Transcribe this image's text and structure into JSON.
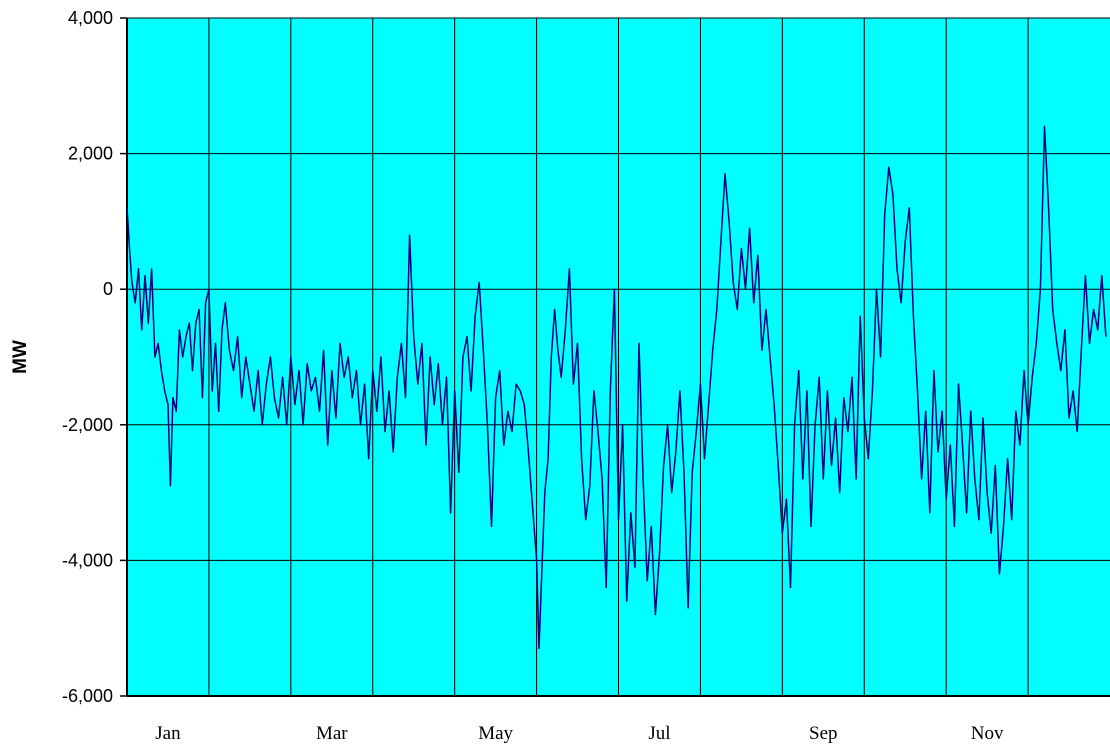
{
  "chart_data": {
    "type": "line",
    "title": "",
    "xlabel": "",
    "ylabel": "MW",
    "ylim": [
      -6000,
      4000
    ],
    "yticks": [
      4000,
      2000,
      0,
      -2000,
      -4000,
      -6000
    ],
    "ytick_labels": [
      "4,000",
      "2,000",
      "0",
      "-2,000",
      "-4,000",
      "-6,000"
    ],
    "x_unit": "month index (0 = start of Jan, 12 = end of Dec)",
    "xlim": [
      0,
      12
    ],
    "x_tick_labels": [
      {
        "label": "Jan",
        "x": 0.5
      },
      {
        "label": "Mar",
        "x": 2.5
      },
      {
        "label": "May",
        "x": 4.5
      },
      {
        "label": "Jul",
        "x": 6.5
      },
      {
        "label": "Sep",
        "x": 8.5
      },
      {
        "label": "Nov",
        "x": 10.5
      }
    ],
    "grid": "on",
    "colors": {
      "plot_bg": "#00FFFF",
      "line": "#000080",
      "grid": "#000000"
    },
    "series": [
      {
        "points": [
          [
            0.0,
            1200
          ],
          [
            0.03,
            600
          ],
          [
            0.06,
            100
          ],
          [
            0.1,
            -200
          ],
          [
            0.14,
            300
          ],
          [
            0.18,
            -600
          ],
          [
            0.22,
            200
          ],
          [
            0.26,
            -500
          ],
          [
            0.3,
            300
          ],
          [
            0.34,
            -1000
          ],
          [
            0.38,
            -800
          ],
          [
            0.42,
            -1200
          ],
          [
            0.46,
            -1500
          ],
          [
            0.5,
            -1700
          ],
          [
            0.53,
            -2900
          ],
          [
            0.56,
            -1600
          ],
          [
            0.6,
            -1800
          ],
          [
            0.64,
            -600
          ],
          [
            0.68,
            -1000
          ],
          [
            0.72,
            -700
          ],
          [
            0.76,
            -500
          ],
          [
            0.8,
            -1200
          ],
          [
            0.84,
            -500
          ],
          [
            0.88,
            -300
          ],
          [
            0.92,
            -1600
          ],
          [
            0.96,
            -200
          ],
          [
            1.0,
            0
          ],
          [
            1.04,
            -1500
          ],
          [
            1.08,
            -800
          ],
          [
            1.12,
            -1800
          ],
          [
            1.16,
            -600
          ],
          [
            1.2,
            -200
          ],
          [
            1.25,
            -900
          ],
          [
            1.3,
            -1200
          ],
          [
            1.35,
            -700
          ],
          [
            1.4,
            -1600
          ],
          [
            1.45,
            -1000
          ],
          [
            1.5,
            -1400
          ],
          [
            1.55,
            -1800
          ],
          [
            1.6,
            -1200
          ],
          [
            1.65,
            -2000
          ],
          [
            1.7,
            -1400
          ],
          [
            1.75,
            -1000
          ],
          [
            1.8,
            -1600
          ],
          [
            1.85,
            -1900
          ],
          [
            1.9,
            -1300
          ],
          [
            1.95,
            -2000
          ],
          [
            2.0,
            -1000
          ],
          [
            2.05,
            -1700
          ],
          [
            2.1,
            -1200
          ],
          [
            2.15,
            -2000
          ],
          [
            2.2,
            -1100
          ],
          [
            2.25,
            -1500
          ],
          [
            2.3,
            -1300
          ],
          [
            2.35,
            -1800
          ],
          [
            2.4,
            -900
          ],
          [
            2.45,
            -2300
          ],
          [
            2.5,
            -1200
          ],
          [
            2.55,
            -1900
          ],
          [
            2.6,
            -800
          ],
          [
            2.65,
            -1300
          ],
          [
            2.7,
            -1000
          ],
          [
            2.75,
            -1600
          ],
          [
            2.8,
            -1200
          ],
          [
            2.85,
            -2000
          ],
          [
            2.9,
            -1400
          ],
          [
            2.95,
            -2500
          ],
          [
            3.0,
            -1200
          ],
          [
            3.05,
            -1800
          ],
          [
            3.1,
            -1000
          ],
          [
            3.15,
            -2100
          ],
          [
            3.2,
            -1500
          ],
          [
            3.25,
            -2400
          ],
          [
            3.3,
            -1300
          ],
          [
            3.35,
            -800
          ],
          [
            3.4,
            -1600
          ],
          [
            3.45,
            800
          ],
          [
            3.5,
            -700
          ],
          [
            3.55,
            -1400
          ],
          [
            3.6,
            -800
          ],
          [
            3.65,
            -2300
          ],
          [
            3.7,
            -1000
          ],
          [
            3.75,
            -1700
          ],
          [
            3.8,
            -1100
          ],
          [
            3.85,
            -2000
          ],
          [
            3.9,
            -1300
          ],
          [
            3.95,
            -3300
          ],
          [
            4.0,
            -1500
          ],
          [
            4.05,
            -2700
          ],
          [
            4.1,
            -1000
          ],
          [
            4.15,
            -700
          ],
          [
            4.2,
            -1500
          ],
          [
            4.25,
            -400
          ],
          [
            4.3,
            100
          ],
          [
            4.35,
            -900
          ],
          [
            4.4,
            -2000
          ],
          [
            4.45,
            -3500
          ],
          [
            4.5,
            -1600
          ],
          [
            4.55,
            -1200
          ],
          [
            4.6,
            -2300
          ],
          [
            4.65,
            -1800
          ],
          [
            4.7,
            -2100
          ],
          [
            4.75,
            -1400
          ],
          [
            4.8,
            -1500
          ],
          [
            4.85,
            -1700
          ],
          [
            4.9,
            -2400
          ],
          [
            4.95,
            -3200
          ],
          [
            5.0,
            -4000
          ],
          [
            5.03,
            -5300
          ],
          [
            5.06,
            -4300
          ],
          [
            5.1,
            -3000
          ],
          [
            5.14,
            -2500
          ],
          [
            5.18,
            -1000
          ],
          [
            5.22,
            -300
          ],
          [
            5.26,
            -900
          ],
          [
            5.3,
            -1300
          ],
          [
            5.35,
            -600
          ],
          [
            5.4,
            300
          ],
          [
            5.45,
            -1400
          ],
          [
            5.5,
            -800
          ],
          [
            5.55,
            -2500
          ],
          [
            5.6,
            -3400
          ],
          [
            5.65,
            -2900
          ],
          [
            5.7,
            -1500
          ],
          [
            5.75,
            -2100
          ],
          [
            5.8,
            -2800
          ],
          [
            5.85,
            -4400
          ],
          [
            5.9,
            -1500
          ],
          [
            5.95,
            0
          ],
          [
            6.0,
            -3400
          ],
          [
            6.05,
            -2000
          ],
          [
            6.1,
            -4600
          ],
          [
            6.15,
            -3300
          ],
          [
            6.2,
            -4100
          ],
          [
            6.25,
            -800
          ],
          [
            6.3,
            -2800
          ],
          [
            6.35,
            -4300
          ],
          [
            6.4,
            -3500
          ],
          [
            6.45,
            -4800
          ],
          [
            6.5,
            -3900
          ],
          [
            6.55,
            -2600
          ],
          [
            6.6,
            -2000
          ],
          [
            6.65,
            -3000
          ],
          [
            6.7,
            -2400
          ],
          [
            6.75,
            -1500
          ],
          [
            6.8,
            -2700
          ],
          [
            6.85,
            -4700
          ],
          [
            6.9,
            -2700
          ],
          [
            6.95,
            -2100
          ],
          [
            7.0,
            -1400
          ],
          [
            7.05,
            -2500
          ],
          [
            7.1,
            -1700
          ],
          [
            7.15,
            -900
          ],
          [
            7.2,
            -300
          ],
          [
            7.25,
            700
          ],
          [
            7.3,
            1700
          ],
          [
            7.35,
            1000
          ],
          [
            7.4,
            100
          ],
          [
            7.45,
            -300
          ],
          [
            7.5,
            600
          ],
          [
            7.55,
            0
          ],
          [
            7.6,
            900
          ],
          [
            7.65,
            -200
          ],
          [
            7.7,
            500
          ],
          [
            7.75,
            -900
          ],
          [
            7.8,
            -300
          ],
          [
            7.85,
            -1000
          ],
          [
            7.9,
            -1700
          ],
          [
            7.95,
            -2600
          ],
          [
            8.0,
            -3600
          ],
          [
            8.05,
            -3100
          ],
          [
            8.1,
            -4400
          ],
          [
            8.15,
            -2000
          ],
          [
            8.2,
            -1200
          ],
          [
            8.25,
            -2800
          ],
          [
            8.3,
            -1500
          ],
          [
            8.35,
            -3500
          ],
          [
            8.4,
            -2000
          ],
          [
            8.45,
            -1300
          ],
          [
            8.5,
            -2800
          ],
          [
            8.55,
            -1500
          ],
          [
            8.6,
            -2600
          ],
          [
            8.65,
            -1900
          ],
          [
            8.7,
            -3000
          ],
          [
            8.75,
            -1600
          ],
          [
            8.8,
            -2100
          ],
          [
            8.85,
            -1300
          ],
          [
            8.9,
            -2800
          ],
          [
            8.95,
            -400
          ],
          [
            9.0,
            -1900
          ],
          [
            9.05,
            -2500
          ],
          [
            9.1,
            -1500
          ],
          [
            9.15,
            0
          ],
          [
            9.2,
            -1000
          ],
          [
            9.25,
            1100
          ],
          [
            9.3,
            1800
          ],
          [
            9.35,
            1400
          ],
          [
            9.4,
            300
          ],
          [
            9.45,
            -200
          ],
          [
            9.5,
            700
          ],
          [
            9.55,
            1200
          ],
          [
            9.6,
            -400
          ],
          [
            9.65,
            -1500
          ],
          [
            9.7,
            -2800
          ],
          [
            9.75,
            -1800
          ],
          [
            9.8,
            -3300
          ],
          [
            9.85,
            -1200
          ],
          [
            9.9,
            -2400
          ],
          [
            9.95,
            -1800
          ],
          [
            10.0,
            -3100
          ],
          [
            10.05,
            -2300
          ],
          [
            10.1,
            -3500
          ],
          [
            10.15,
            -1400
          ],
          [
            10.2,
            -2300
          ],
          [
            10.25,
            -3300
          ],
          [
            10.3,
            -1800
          ],
          [
            10.35,
            -2800
          ],
          [
            10.4,
            -3400
          ],
          [
            10.45,
            -1900
          ],
          [
            10.5,
            -3000
          ],
          [
            10.55,
            -3600
          ],
          [
            10.6,
            -2600
          ],
          [
            10.65,
            -4200
          ],
          [
            10.7,
            -3500
          ],
          [
            10.75,
            -2500
          ],
          [
            10.8,
            -3400
          ],
          [
            10.85,
            -1800
          ],
          [
            10.9,
            -2300
          ],
          [
            10.95,
            -1200
          ],
          [
            11.0,
            -2000
          ],
          [
            11.05,
            -1300
          ],
          [
            11.1,
            -800
          ],
          [
            11.15,
            0
          ],
          [
            11.2,
            2400
          ],
          [
            11.25,
            1200
          ],
          [
            11.3,
            -300
          ],
          [
            11.35,
            -800
          ],
          [
            11.4,
            -1200
          ],
          [
            11.45,
            -600
          ],
          [
            11.5,
            -1900
          ],
          [
            11.55,
            -1500
          ],
          [
            11.6,
            -2100
          ],
          [
            11.65,
            -900
          ],
          [
            11.7,
            200
          ],
          [
            11.75,
            -800
          ],
          [
            11.8,
            -300
          ],
          [
            11.85,
            -600
          ],
          [
            11.9,
            200
          ],
          [
            11.95,
            -700
          ]
        ]
      }
    ]
  }
}
